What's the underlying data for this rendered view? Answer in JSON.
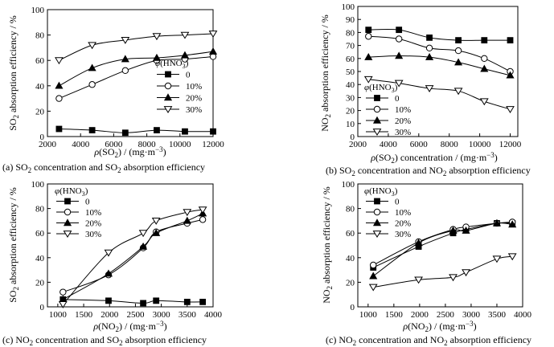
{
  "chart_data": [
    {
      "type": "line",
      "id": "a",
      "caption": "(a) SO2 concentration and SO2 absorption efficiency",
      "caption_parts": [
        [
          "(a) SO",
          ""
        ],
        [
          "2",
          "sub"
        ],
        [
          " concentration and SO",
          ""
        ],
        [
          "2",
          "sub"
        ],
        [
          " absorption efficiency",
          ""
        ]
      ],
      "ylabel_parts": [
        [
          "SO",
          ""
        ],
        [
          "2",
          "sub"
        ],
        [
          " absorption efficiency / %",
          ""
        ]
      ],
      "xlabel_parts": [
        [
          "ρ",
          "it"
        ],
        [
          "(SO",
          ""
        ],
        [
          "2",
          "sub"
        ],
        [
          ") / (mg·m",
          ""
        ],
        [
          "−3",
          "sup"
        ],
        [
          ")",
          ""
        ]
      ],
      "xlim": [
        2000,
        12000
      ],
      "ylim": [
        0,
        100
      ],
      "xticks": [
        2000,
        4000,
        6000,
        8000,
        10000,
        12000
      ],
      "yticks": [
        0,
        20,
        40,
        60,
        80,
        100
      ],
      "legend_title_parts": [
        [
          "φ",
          "it"
        ],
        [
          "(HNO",
          ""
        ],
        [
          "3",
          "sub"
        ],
        [
          ")",
          ""
        ]
      ],
      "legend_position": "center-right",
      "series": [
        {
          "name": "0",
          "marker": "square",
          "x": [
            2700,
            4700,
            6700,
            8600,
            10300,
            12000
          ],
          "y": [
            6,
            5,
            3,
            5,
            4,
            4
          ]
        },
        {
          "name": "10%",
          "marker": "circle",
          "x": [
            2700,
            4700,
            6700,
            8600,
            10300,
            12000
          ],
          "y": [
            30,
            41,
            52,
            60,
            61,
            63
          ]
        },
        {
          "name": "20%",
          "marker": "triangle",
          "x": [
            2700,
            4700,
            6700,
            8600,
            10300,
            12000
          ],
          "y": [
            40,
            54,
            61,
            62,
            64,
            67
          ]
        },
        {
          "name": "30%",
          "marker": "triangle-down",
          "x": [
            2700,
            4700,
            6700,
            8600,
            10300,
            12000
          ],
          "y": [
            60,
            72,
            76,
            79,
            80,
            81
          ]
        }
      ]
    },
    {
      "type": "line",
      "id": "b",
      "caption": "(b) SO2 concentration and NO2 absorption efficiency",
      "caption_parts": [
        [
          "(b) SO",
          ""
        ],
        [
          "2",
          "sub"
        ],
        [
          " concentration and NO",
          ""
        ],
        [
          "2",
          "sub"
        ],
        [
          " absorption efficiency",
          ""
        ]
      ],
      "ylabel_parts": [
        [
          "NO",
          ""
        ],
        [
          "2",
          "sub"
        ],
        [
          " absorption efficiency / %",
          ""
        ]
      ],
      "xlabel_parts": [
        [
          "ρ",
          "it"
        ],
        [
          "(SO",
          ""
        ],
        [
          "2",
          "sub"
        ],
        [
          ") concentration / (mg·m",
          ""
        ],
        [
          "−3",
          "sup"
        ],
        [
          ")",
          ""
        ]
      ],
      "xlim": [
        2000,
        12500
      ],
      "ylim": [
        0,
        100
      ],
      "xticks": [
        2000,
        4000,
        6000,
        8000,
        10000,
        12000
      ],
      "yticks": [
        0,
        10,
        20,
        30,
        40,
        50,
        60,
        70,
        80,
        90,
        100
      ],
      "legend_title_parts": [
        [
          "φ",
          "it"
        ],
        [
          "(HNO",
          ""
        ],
        [
          "3",
          "sub"
        ],
        [
          ")",
          ""
        ]
      ],
      "legend_position": "bottom-left",
      "series": [
        {
          "name": "0",
          "marker": "square",
          "x": [
            2700,
            4700,
            6700,
            8600,
            10300,
            12000
          ],
          "y": [
            82,
            82,
            76,
            74,
            74,
            74
          ]
        },
        {
          "name": "10%",
          "marker": "circle",
          "x": [
            2700,
            4700,
            6700,
            8600,
            10300,
            12000
          ],
          "y": [
            77,
            75,
            68,
            66,
            60,
            50
          ]
        },
        {
          "name": "20%",
          "marker": "triangle",
          "x": [
            2700,
            4700,
            6700,
            8600,
            10300,
            12000
          ],
          "y": [
            61,
            62,
            61,
            57,
            52,
            47
          ]
        },
        {
          "name": "30%",
          "marker": "triangle-down",
          "x": [
            2700,
            4700,
            6700,
            8600,
            10300,
            12000
          ],
          "y": [
            44,
            41,
            37,
            35,
            27,
            21
          ]
        }
      ]
    },
    {
      "type": "line",
      "id": "c",
      "caption": "(c) NO2 concentration and SO2 absorption efficiency",
      "caption_parts": [
        [
          "(c) NO",
          ""
        ],
        [
          "2",
          "sub"
        ],
        [
          " concentration and SO",
          ""
        ],
        [
          "2",
          "sub"
        ],
        [
          " absorption efficiency",
          ""
        ]
      ],
      "ylabel_parts": [
        [
          "SO",
          ""
        ],
        [
          "2",
          "sub"
        ],
        [
          " absorption efficiency / %",
          ""
        ]
      ],
      "xlabel_parts": [
        [
          "ρ",
          "it"
        ],
        [
          "(NO",
          ""
        ],
        [
          "2",
          "sub"
        ],
        [
          ") / (mg·m",
          ""
        ],
        [
          "−3",
          "sup"
        ],
        [
          ")",
          ""
        ]
      ],
      "xlim": [
        800,
        4000
      ],
      "ylim": [
        0,
        100
      ],
      "xticks": [
        1000,
        1500,
        2000,
        2500,
        3000,
        3500,
        4000
      ],
      "yticks": [
        0,
        20,
        40,
        60,
        80,
        100
      ],
      "legend_title_parts": [
        [
          "φ",
          "it"
        ],
        [
          "(HNO",
          ""
        ],
        [
          "3",
          "sub"
        ],
        [
          ")",
          ""
        ]
      ],
      "legend_position": "top-left",
      "series": [
        {
          "name": "0",
          "marker": "square",
          "x": [
            1100,
            1980,
            2650,
            2900,
            3500,
            3800
          ],
          "y": [
            6,
            5,
            3,
            5,
            4,
            4
          ]
        },
        {
          "name": "10%",
          "marker": "circle",
          "x": [
            1100,
            1980,
            2650,
            2900,
            3500,
            3800
          ],
          "y": [
            12,
            26,
            48,
            61,
            68,
            71
          ]
        },
        {
          "name": "20%",
          "marker": "triangle",
          "x": [
            1100,
            1980,
            2650,
            2900,
            3500,
            3800
          ],
          "y": [
            6,
            27,
            49,
            60,
            70,
            76
          ]
        },
        {
          "name": "30%",
          "marker": "triangle-down",
          "x": [
            1100,
            1980,
            2650,
            2900,
            3500,
            3800
          ],
          "y": [
            2,
            44,
            60,
            70,
            77,
            79
          ]
        }
      ]
    },
    {
      "type": "line",
      "id": "d",
      "caption": "(c) NO2 concentration and NO2 absorption efficiency",
      "caption_parts": [
        [
          "(c) NO",
          ""
        ],
        [
          "2",
          "sub"
        ],
        [
          " concentration and NO",
          ""
        ],
        [
          "2",
          "sub"
        ],
        [
          " absorption efficiency",
          ""
        ]
      ],
      "ylabel_parts": [
        [
          "NO",
          ""
        ],
        [
          "2",
          "sub"
        ],
        [
          " absorption efficiency / %",
          ""
        ]
      ],
      "xlabel_parts": [
        [
          "ρ",
          "it"
        ],
        [
          "(NO",
          ""
        ],
        [
          "2",
          "sub"
        ],
        [
          ") / (mg·m",
          ""
        ],
        [
          "−3",
          "sup"
        ],
        [
          ")",
          ""
        ]
      ],
      "xlim": [
        800,
        4000
      ],
      "ylim": [
        0,
        100
      ],
      "xticks": [
        1000,
        1500,
        2000,
        2500,
        3000,
        3500,
        4000
      ],
      "yticks": [
        0,
        20,
        40,
        60,
        80,
        100
      ],
      "legend_title_parts": [
        [
          "φ",
          "it"
        ],
        [
          "(HNO",
          ""
        ],
        [
          "3",
          "sub"
        ],
        [
          ")",
          ""
        ]
      ],
      "legend_position": "top-left",
      "series": [
        {
          "name": "0",
          "marker": "square",
          "x": [
            1100,
            1980,
            2650,
            2900,
            3500,
            3800
          ],
          "y": [
            32,
            49,
            60,
            63,
            68,
            68
          ]
        },
        {
          "name": "10%",
          "marker": "circle",
          "x": [
            1100,
            1980,
            2650,
            2900,
            3500,
            3800
          ],
          "y": [
            34,
            53,
            63,
            65,
            68,
            69
          ]
        },
        {
          "name": "20%",
          "marker": "triangle",
          "x": [
            1100,
            1980,
            2650,
            2900,
            3500,
            3800
          ],
          "y": [
            25,
            52,
            62,
            62,
            68,
            67
          ]
        },
        {
          "name": "30%",
          "marker": "triangle-down",
          "x": [
            1100,
            1980,
            2650,
            2900,
            3500,
            3800
          ],
          "y": [
            16,
            22,
            24,
            28,
            39,
            41
          ]
        }
      ]
    }
  ]
}
